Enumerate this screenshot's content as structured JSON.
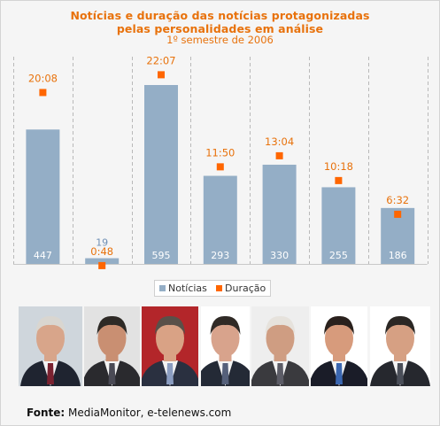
{
  "chart_data": {
    "type": "bar",
    "title_lines": [
      "Notícias e duração das notícias protagonizadas",
      "pelas personalidades em análise"
    ],
    "subtitle": "1º semestre de 2006",
    "categories": [
      "",
      "",
      "",
      "",
      "",
      "",
      ""
    ],
    "series": [
      {
        "name": "Notícias",
        "values": [
          447,
          19,
          595,
          293,
          330,
          255,
          186
        ],
        "labels": [
          "447",
          "19",
          "595",
          "293",
          "330",
          "255",
          "186"
        ],
        "color": "#94aec6"
      },
      {
        "name": "Duração",
        "values_minutes": [
          1208,
          48,
          1327,
          710,
          784,
          618,
          392
        ],
        "labels": [
          "20:08",
          "0:48",
          "22:07",
          "11:50",
          "13:04",
          "10:18",
          "6:32"
        ],
        "color": "#ff6600"
      }
    ],
    "ylim": [
      0,
      650
    ],
    "grid": "vertical dashed separators",
    "legend_position": "bottom-center",
    "legend": [
      "Notícias",
      "Duração"
    ]
  },
  "colors": {
    "title": "#e8720c",
    "bar": "#94aec6",
    "marker": "#ff6600",
    "small_value_label": "#6f8fb5",
    "background": "#f5f5f5"
  },
  "photos": [
    {
      "name": "portrait-1",
      "icon": "person-portrait",
      "bg": "#cfd6dc",
      "suit": "#1f2430",
      "tie": "#7a2230",
      "skin": "#d8a58a",
      "hair": "#d9d6d0"
    },
    {
      "name": "portrait-2",
      "icon": "person-portrait",
      "bg": "#e2e2e2",
      "suit": "#2a2a2e",
      "tie": "#4a4a55",
      "skin": "#c98f72",
      "hair": "#2e2a26"
    },
    {
      "name": "portrait-3",
      "icon": "person-portrait",
      "bg": "#b3262a",
      "suit": "#2a3040",
      "tie": "#8a9cc0",
      "skin": "#d9a285",
      "hair": "#595049"
    },
    {
      "name": "portrait-4",
      "icon": "person-portrait",
      "bg": "#ffffff",
      "suit": "#242a36",
      "tie": "#55607a",
      "skin": "#d8a38c",
      "hair": "#302a26"
    },
    {
      "name": "portrait-5",
      "icon": "person-portrait",
      "bg": "#eeeeee",
      "suit": "#3a3a3e",
      "tie": "#5c5c66",
      "skin": "#cf9d82",
      "hair": "#e6e2dc"
    },
    {
      "name": "portrait-6",
      "icon": "person-portrait",
      "bg": "#ffffff",
      "suit": "#1a1c28",
      "tie": "#3a66b0",
      "skin": "#d79b7c",
      "hair": "#2a211d"
    },
    {
      "name": "portrait-7",
      "icon": "person-portrait",
      "bg": "#ffffff",
      "suit": "#26282e",
      "tie": "#4a4e58",
      "skin": "#d6a083",
      "hair": "#2b2724"
    }
  ],
  "source": {
    "label": "Fonte:",
    "text": " MediaMonitor, e-telenews.com"
  }
}
